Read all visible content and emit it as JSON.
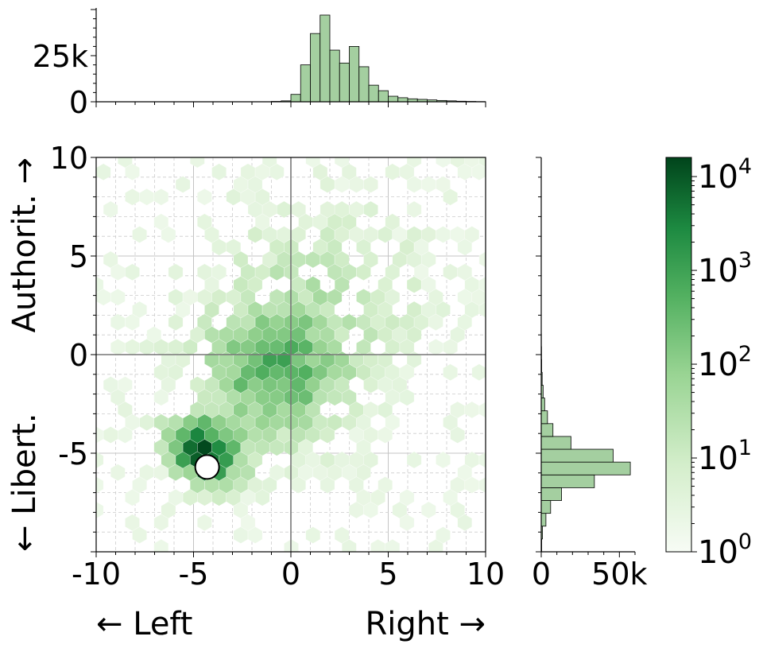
{
  "chart_data": [
    {
      "type": "heatmap",
      "subtype": "hexbin",
      "panel": "main",
      "xlabel_left": "← Left",
      "xlabel_right": "Right →",
      "ylabel_bottom": "← Libert.",
      "ylabel_top": "Authorit. →",
      "xlim": [
        -10,
        10
      ],
      "ylim": [
        -10,
        10
      ],
      "x_ticks": [
        -10,
        -5,
        0,
        5,
        10
      ],
      "y_ticks": [
        -5,
        0,
        5,
        10
      ],
      "x_tick_labels": [
        "-10",
        "-5",
        "0",
        "5",
        "10"
      ],
      "y_tick_labels": [
        "-5",
        "0",
        "5",
        "10"
      ],
      "grid": true,
      "minor_grid": true,
      "axis_lines_at_zero": true,
      "log_color_scale": true,
      "colormap": "Greens",
      "peak": {
        "x": -4.5,
        "y": -5.0
      },
      "marker": {
        "x": -4.3,
        "y": -5.7,
        "color": "#ffffff"
      }
    },
    {
      "type": "bar",
      "panel": "top-marginal-histogram",
      "orientation": "vertical",
      "bin_start": -10,
      "bin_width": 0.5,
      "values": [
        0,
        0,
        0,
        0,
        0,
        0,
        0,
        0,
        0,
        0,
        0,
        0,
        0,
        0,
        0,
        0,
        0,
        0,
        200,
        500,
        4000,
        20000,
        37000,
        47000,
        28000,
        21000,
        30000,
        19000,
        9000,
        6000,
        3000,
        2200,
        1600,
        1300,
        1000,
        700,
        500,
        300,
        200,
        100
      ],
      "yticks": [
        0,
        25000
      ],
      "ytick_labels": [
        "0",
        "25k"
      ],
      "color": "#a4cfa0"
    },
    {
      "type": "bar",
      "panel": "right-marginal-histogram",
      "orientation": "horizontal",
      "bin_start": -10,
      "bin_width": 0.65,
      "values": [
        300,
        800,
        3000,
        6000,
        13000,
        34000,
        57000,
        46000,
        19000,
        7500,
        4000,
        2200,
        1200,
        600,
        300,
        200,
        100,
        50,
        20,
        10
      ],
      "xticks": [
        0,
        50000
      ],
      "xtick_labels": [
        "0",
        "50k"
      ],
      "color": "#a4cfa0"
    },
    {
      "type": "colorbar",
      "panel": "colorbar",
      "scale": "log",
      "range": [
        1,
        16000
      ],
      "ticks": [
        {
          "base": "10",
          "exp": "0",
          "value": 1
        },
        {
          "base": "10",
          "exp": "1",
          "value": 10
        },
        {
          "base": "10",
          "exp": "2",
          "value": 100
        },
        {
          "base": "10",
          "exp": "3",
          "value": 1000
        },
        {
          "base": "10",
          "exp": "4",
          "value": 10000
        }
      ],
      "color_low": "#f7fcf5",
      "color_high": "#00441b"
    }
  ]
}
